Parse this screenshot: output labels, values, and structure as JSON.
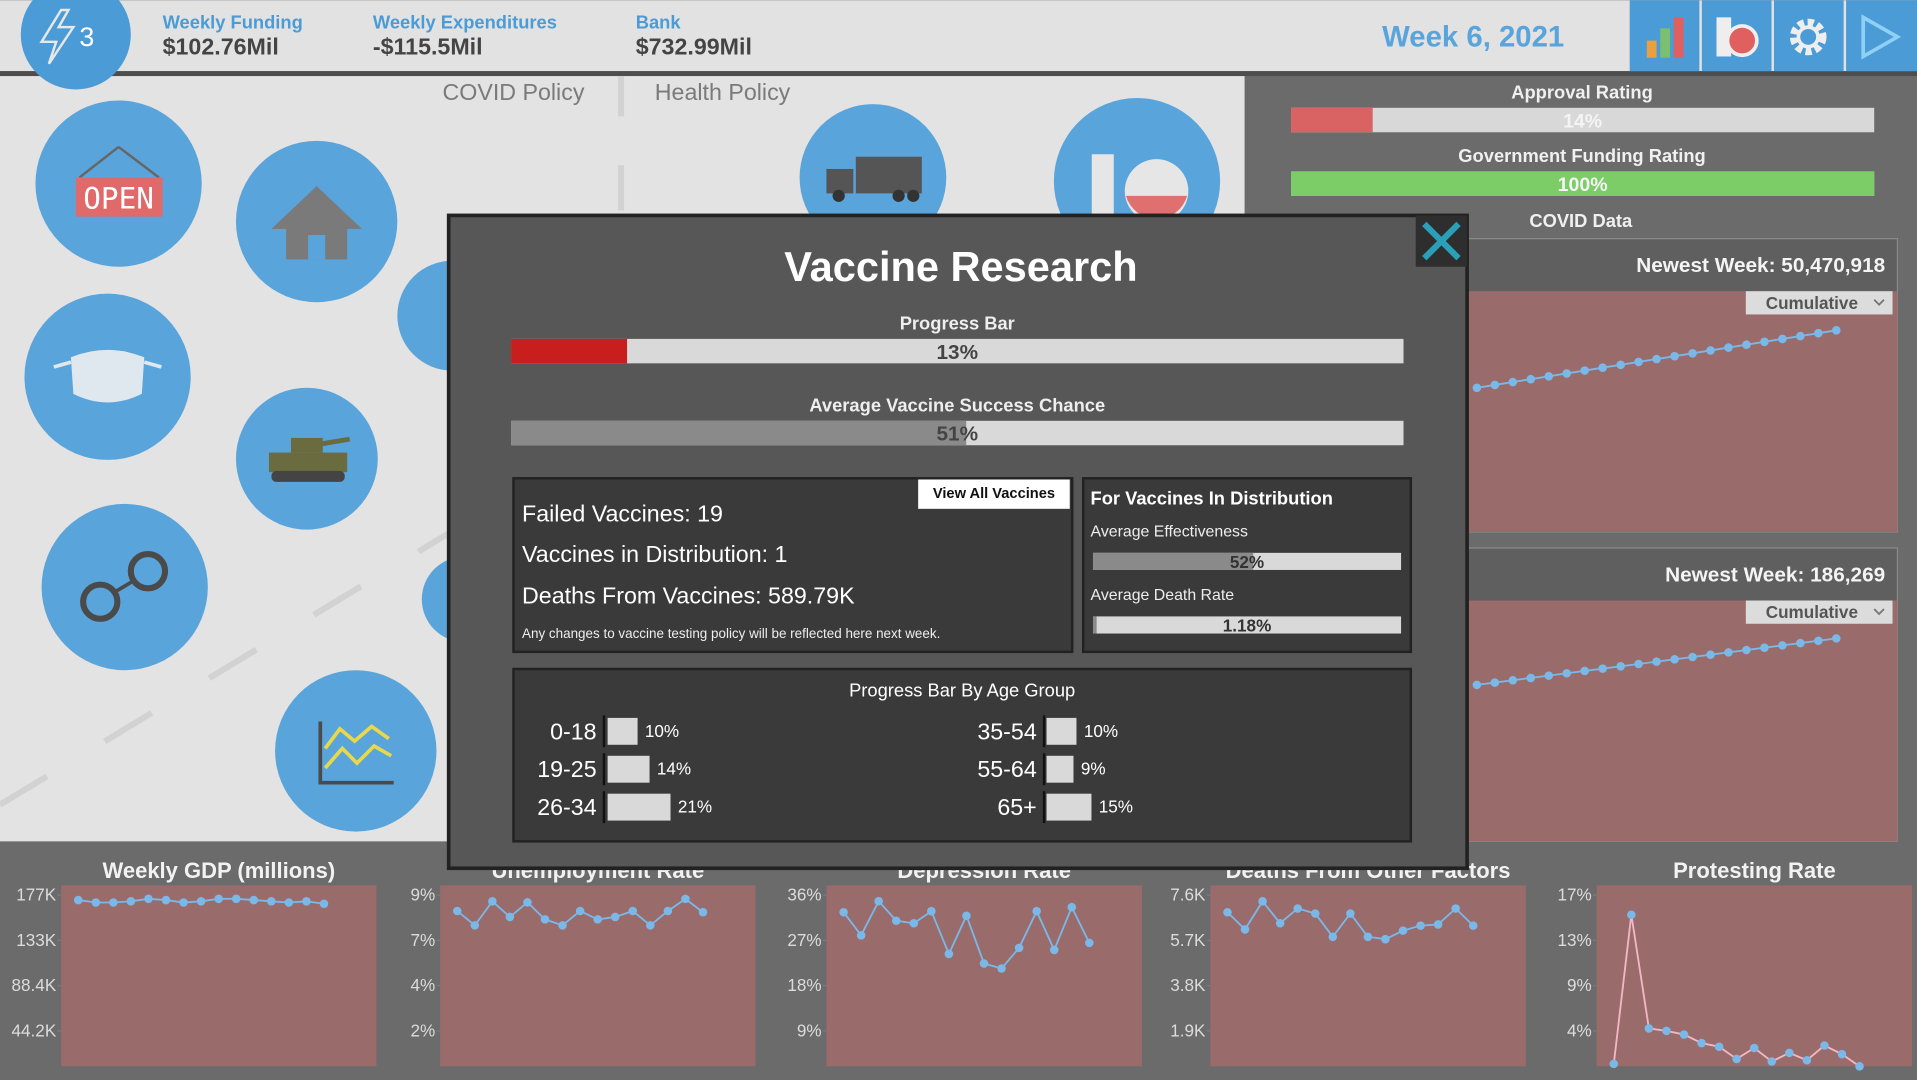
{
  "top_bar": {
    "energy": "3",
    "stats": [
      {
        "label": "Weekly Funding",
        "value": "$102.76Mil"
      },
      {
        "label": "Weekly Expenditures",
        "value": "-$115.5Mil"
      },
      {
        "label": "Bank",
        "value": "$732.99Mil"
      }
    ],
    "date": "Week 6, 2021"
  },
  "tabs": [
    "COVID Policy",
    "Health Policy"
  ],
  "icons": {
    "open_sign": "OPEN"
  },
  "ratings": [
    {
      "title": "Approval Rating",
      "value": 14,
      "label": "14%",
      "color": "#d96262"
    },
    {
      "title": "Government Funding Rating",
      "value": 100,
      "label": "100%",
      "color": "#7ccc68"
    }
  ],
  "covid_data_title": "COVID Data",
  "modal": {
    "title": "Vaccine Research",
    "bars": [
      {
        "title": "Progress Bar",
        "value": 13,
        "label": "13%",
        "color": "#c81e1e"
      },
      {
        "title": "Average Vaccine Success Chance",
        "value": 51,
        "label": "51%",
        "color": "#8a8a8a"
      }
    ],
    "stats": [
      "Failed Vaccines: 19",
      "Vaccines in Distribution: 1",
      "Deaths From Vaccines: 589.79K"
    ],
    "note": "Any changes to vaccine testing policy will be reflected here next week.",
    "button": "View All Vaccines",
    "distribution": {
      "title": "For Vaccines In Distribution",
      "bars": [
        {
          "title": "Average Effectiveness",
          "value": 52,
          "label": "52%",
          "color": "#8a8a8a"
        },
        {
          "title": "Average Death Rate",
          "value": 1.18,
          "label": "1.18%",
          "color": "#8a8a8a"
        }
      ]
    },
    "age_groups": {
      "title": "Progress Bar By Age Group",
      "groups": [
        {
          "name": "0-18",
          "value": 10,
          "label": "10%"
        },
        {
          "name": "19-25",
          "value": 14,
          "label": "14%"
        },
        {
          "name": "26-34",
          "value": 21,
          "label": "21%"
        },
        {
          "name": "35-54",
          "value": 10,
          "label": "10%"
        },
        {
          "name": "55-64",
          "value": 9,
          "label": "9%"
        },
        {
          "name": "65+",
          "value": 15,
          "label": "15%"
        }
      ]
    }
  },
  "chart_data": [
    {
      "type": "line",
      "title": "Weekly GDP (millions)",
      "values": [
        172000,
        169600,
        169600,
        170800,
        173200,
        172000,
        169600,
        170800,
        173200,
        173200,
        172000,
        170800,
        169600,
        170800,
        168400
      ],
      "ylim": [
        9550,
        186350
      ],
      "yticks": [
        {
          "value": 44200,
          "label": "44.2K"
        },
        {
          "value": 88400,
          "label": "88.4K"
        },
        {
          "value": 132600,
          "label": "133K"
        },
        {
          "value": 176800,
          "label": "177K"
        }
      ],
      "color": "#7ab8e8",
      "line_color": "#7ab8e8"
    },
    {
      "type": "line",
      "title": "Unemployment Rate",
      "values": [
        8.03,
        7.33,
        8.5,
        7.74,
        8.45,
        7.62,
        7.33,
        8.03,
        7.62,
        7.74,
        8.03,
        7.33,
        8.03,
        8.62,
        7.97
      ],
      "ylim": [
        0.475,
        9.275
      ],
      "yticks": [
        {
          "value": 2.2,
          "label": "2%"
        },
        {
          "value": 4.4,
          "label": "4%"
        },
        {
          "value": 6.6,
          "label": "7%"
        },
        {
          "value": 8.8,
          "label": "9%"
        }
      ],
      "color": "#7ab8e8",
      "line_color": "#7ab8e8"
    },
    {
      "type": "line",
      "title": "Depression Rate",
      "values": [
        32.6,
        28.0,
        34.8,
        30.9,
        30.4,
        32.8,
        24.3,
        31.9,
        22.4,
        21.4,
        25.5,
        32.8,
        25.1,
        33.6,
        26.5
      ],
      "ylim": [
        1.94,
        37.94
      ],
      "yticks": [
        {
          "value": 9,
          "label": "9%"
        },
        {
          "value": 18,
          "label": "18%"
        },
        {
          "value": 27,
          "label": "27%"
        },
        {
          "value": 36,
          "label": "36%"
        }
      ],
      "color": "#7ab8e8",
      "line_color": "#7ab8e8"
    },
    {
      "type": "line",
      "title": "Deaths From Other Factors",
      "values": [
        6880,
        6160,
        7340,
        6420,
        7040,
        6830,
        5850,
        6830,
        5850,
        5750,
        6110,
        6320,
        6370,
        7040,
        6320
      ],
      "ylim": [
        410,
        8010
      ],
      "yticks": [
        {
          "value": 1900,
          "label": "1.9K"
        },
        {
          "value": 3800,
          "label": "3.8K"
        },
        {
          "value": 5700,
          "label": "5.7K"
        },
        {
          "value": 7600,
          "label": "7.6K"
        }
      ],
      "color": "#7ab8e8",
      "line_color": "#7ab8e8"
    },
    {
      "type": "line",
      "title": "Protesting Rate",
      "values": [
        1.16,
        15.34,
        4.53,
        4.3,
        3.95,
        3.14,
        2.79,
        1.63,
        2.67,
        1.39,
        2.21,
        1.51,
        2.91,
        2.09,
        0.93
      ],
      "ylim": [
        0.93,
        18.13
      ],
      "yticks": [
        {
          "value": 4.3,
          "label": "4%"
        },
        {
          "value": 8.6,
          "label": "9%"
        },
        {
          "value": 12.9,
          "label": "13%"
        },
        {
          "value": 17.2,
          "label": "17%"
        }
      ],
      "color": "#7ab8e8",
      "line_color": "#f0b8c4"
    },
    {
      "type": "line",
      "title": "Newest Week: 50,470,918",
      "dropdown": "Cumulative",
      "values": [
        36090000,
        36810000,
        37530000,
        38250000,
        38970000,
        39690000,
        40410000,
        41120000,
        41840000,
        42560000,
        43280000,
        44000000,
        44720000,
        45440000,
        46160000,
        46880000,
        47600000,
        48320000,
        49030000,
        49750000,
        50470918
      ],
      "ylim": [
        0,
        54140000
      ],
      "color": "#7ab8e8",
      "line_color": "#7ab8e8"
    },
    {
      "type": "line",
      "title": "Newest Week: 186,269",
      "dropdown": "Cumulative",
      "values": [
        143600,
        145733,
        147867,
        150000,
        152133,
        154267,
        156400,
        158533,
        160667,
        162800,
        164933,
        167067,
        169200,
        171333,
        173467,
        175600,
        177733,
        179867,
        182000,
        184133,
        186269
      ],
      "ylim": [
        0,
        198600
      ],
      "color": "#7ab8e8",
      "line_color": "#7ab8e8"
    }
  ]
}
